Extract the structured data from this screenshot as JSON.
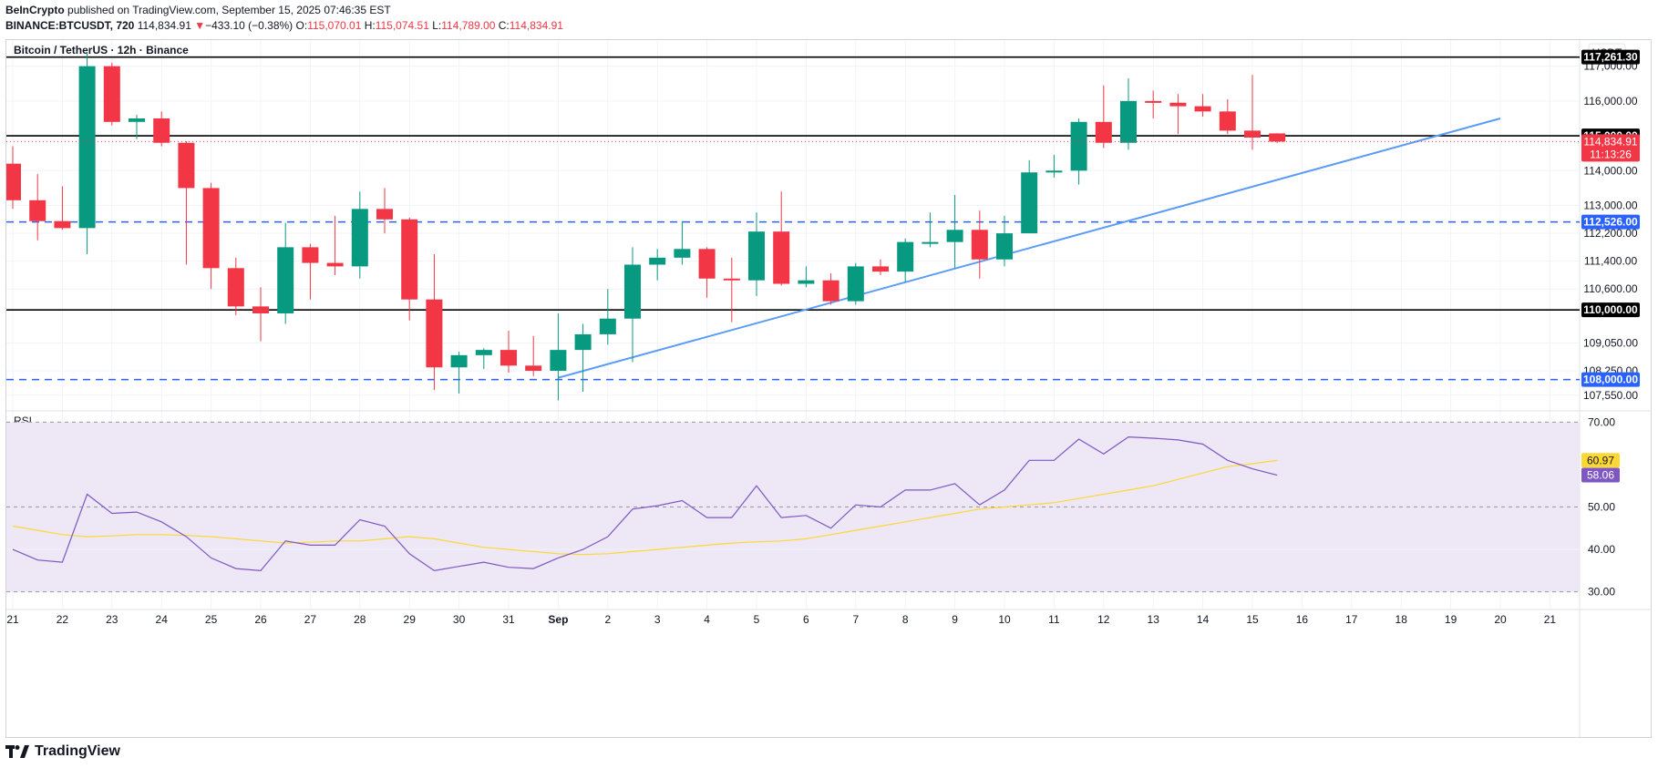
{
  "header": {
    "publisher": "BeInCrypto",
    "published_text": "published on TradingView.com, September 15, 2025 07:46:35 EST",
    "symbol": "BINANCE:BTCUSDT, 720",
    "last_price": "114,834.91",
    "change_arrow": "▼",
    "change": "−433.10 (−0.38%)",
    "o_label": "O:",
    "o_value": "115,070.01",
    "h_label": "H:",
    "h_value": "115,074.51",
    "l_label": "L:",
    "l_value": "114,789.00",
    "c_label": "C:",
    "c_value": "114,834.91"
  },
  "colors": {
    "up": "#089981",
    "down": "#f23645",
    "trendline": "#5b9cf6",
    "dashed": "#2962ff",
    "rsi_line": "#7e57c2",
    "rsi_ma": "#fdd835",
    "rsi_band": "#ede7f6"
  },
  "footer": {
    "brand": "TradingView"
  },
  "chart_data": [
    {
      "type": "candlestick",
      "title": "Bitcoin / TetherUS · 12h · Binance",
      "currency_label": "USDT",
      "ylim": [
        107100,
        117750
      ],
      "y_ticks": [
        {
          "value": 117000,
          "label": "117,000.00"
        },
        {
          "value": 116000,
          "label": "116,000.00"
        },
        {
          "value": 114000,
          "label": "114,000.00"
        },
        {
          "value": 113000,
          "label": "113,000.00"
        },
        {
          "value": 112200,
          "label": "112,200.00"
        },
        {
          "value": 111400,
          "label": "111,400.00"
        },
        {
          "value": 110600,
          "label": "110,600.00"
        },
        {
          "value": 109050,
          "label": "109,050.00"
        },
        {
          "value": 108250,
          "label": "108,250.00"
        },
        {
          "value": 107550,
          "label": "107,550.00"
        }
      ],
      "x_ticks": [
        "21",
        "22",
        "23",
        "24",
        "25",
        "26",
        "27",
        "28",
        "29",
        "30",
        "31",
        "Sep",
        "2",
        "3",
        "4",
        "5",
        "6",
        "7",
        "8",
        "9",
        "10",
        "11",
        "12",
        "13",
        "14",
        "15",
        "16",
        "17",
        "18",
        "19",
        "20",
        "21"
      ],
      "first_candle_offset": 0,
      "candles": [
        {
          "o": 114200,
          "h": 114700,
          "l": 112900,
          "c": 113150
        },
        {
          "o": 113150,
          "h": 113900,
          "l": 112000,
          "c": 112550
        },
        {
          "o": 112550,
          "h": 113550,
          "l": 112300,
          "c": 112350
        },
        {
          "o": 112350,
          "h": 117400,
          "l": 111600,
          "c": 117000
        },
        {
          "o": 117000,
          "h": 117100,
          "l": 115300,
          "c": 115400
        },
        {
          "o": 115400,
          "h": 115600,
          "l": 114900,
          "c": 115500
        },
        {
          "o": 115500,
          "h": 115700,
          "l": 114700,
          "c": 114800
        },
        {
          "o": 114800,
          "h": 114850,
          "l": 111300,
          "c": 113500
        },
        {
          "o": 113500,
          "h": 113650,
          "l": 110600,
          "c": 111200
        },
        {
          "o": 111200,
          "h": 111500,
          "l": 109850,
          "c": 110100
        },
        {
          "o": 110100,
          "h": 110650,
          "l": 109100,
          "c": 109900
        },
        {
          "o": 109900,
          "h": 112500,
          "l": 109600,
          "c": 111800
        },
        {
          "o": 111800,
          "h": 111900,
          "l": 110300,
          "c": 111350
        },
        {
          "o": 111350,
          "h": 112700,
          "l": 111000,
          "c": 111250
        },
        {
          "o": 111250,
          "h": 113400,
          "l": 110900,
          "c": 112900
        },
        {
          "o": 112900,
          "h": 113500,
          "l": 112200,
          "c": 112600
        },
        {
          "o": 112600,
          "h": 112650,
          "l": 109700,
          "c": 110300
        },
        {
          "o": 110300,
          "h": 111600,
          "l": 107700,
          "c": 108350
        },
        {
          "o": 108350,
          "h": 108800,
          "l": 107600,
          "c": 108700
        },
        {
          "o": 108700,
          "h": 108900,
          "l": 108300,
          "c": 108850
        },
        {
          "o": 108850,
          "h": 109400,
          "l": 108200,
          "c": 108400
        },
        {
          "o": 108400,
          "h": 109250,
          "l": 108100,
          "c": 108250
        },
        {
          "o": 108250,
          "h": 109900,
          "l": 107400,
          "c": 108850
        },
        {
          "o": 108850,
          "h": 109600,
          "l": 107650,
          "c": 109300
        },
        {
          "o": 109300,
          "h": 110600,
          "l": 109000,
          "c": 109750
        },
        {
          "o": 109750,
          "h": 111800,
          "l": 108500,
          "c": 111300
        },
        {
          "o": 111300,
          "h": 111750,
          "l": 110850,
          "c": 111500
        },
        {
          "o": 111500,
          "h": 112550,
          "l": 111300,
          "c": 111750
        },
        {
          "o": 111750,
          "h": 111800,
          "l": 110350,
          "c": 110900
        },
        {
          "o": 110900,
          "h": 111500,
          "l": 109650,
          "c": 110850
        },
        {
          "o": 110850,
          "h": 112800,
          "l": 110400,
          "c": 112250
        },
        {
          "o": 112250,
          "h": 113400,
          "l": 110700,
          "c": 110750
        },
        {
          "o": 110750,
          "h": 111250,
          "l": 110650,
          "c": 110850
        },
        {
          "o": 110850,
          "h": 111050,
          "l": 110150,
          "c": 110250
        },
        {
          "o": 110250,
          "h": 111350,
          "l": 110150,
          "c": 111250
        },
        {
          "o": 111250,
          "h": 111450,
          "l": 111000,
          "c": 111100
        },
        {
          "o": 111100,
          "h": 112050,
          "l": 110800,
          "c": 111950
        },
        {
          "o": 111950,
          "h": 112800,
          "l": 111800,
          "c": 111950
        },
        {
          "o": 111950,
          "h": 113300,
          "l": 111200,
          "c": 112300
        },
        {
          "o": 112300,
          "h": 112850,
          "l": 110900,
          "c": 111450
        },
        {
          "o": 111450,
          "h": 112700,
          "l": 111250,
          "c": 112200
        },
        {
          "o": 112200,
          "h": 114300,
          "l": 112200,
          "c": 113950
        },
        {
          "o": 113950,
          "h": 114450,
          "l": 113800,
          "c": 114000
        },
        {
          "o": 114000,
          "h": 115500,
          "l": 113600,
          "c": 115400
        },
        {
          "o": 115400,
          "h": 116450,
          "l": 114650,
          "c": 114800
        },
        {
          "o": 114800,
          "h": 116650,
          "l": 114600,
          "c": 116000
        },
        {
          "o": 116000,
          "h": 116300,
          "l": 115500,
          "c": 115950
        },
        {
          "o": 115950,
          "h": 116200,
          "l": 115050,
          "c": 115850
        },
        {
          "o": 115850,
          "h": 116200,
          "l": 115550,
          "c": 115700
        },
        {
          "o": 115700,
          "h": 116050,
          "l": 115050,
          "c": 115150
        },
        {
          "o": 115150,
          "h": 116750,
          "l": 114600,
          "c": 114950
        },
        {
          "o": 115070.01,
          "h": 115074.51,
          "l": 114789.0,
          "c": 114834.91
        }
      ],
      "horizontal_lines": [
        {
          "value": 117261.3,
          "label": "117,261.30",
          "style": "solid"
        },
        {
          "value": 115000.0,
          "label": "115,000.00",
          "style": "solid"
        },
        {
          "value": 110000.0,
          "label": "110,000.00",
          "style": "solid"
        },
        {
          "value": 112526.0,
          "label": "112,526.00",
          "style": "dashed"
        },
        {
          "value": 108000.0,
          "label": "108,000.00",
          "style": "dashed"
        }
      ],
      "trendline": {
        "from": {
          "candle": 22,
          "value": 108050
        },
        "to": {
          "candle": 60,
          "value": 115500
        }
      },
      "last_price_label": "114,834.91",
      "countdown_label": "11:13:26"
    },
    {
      "type": "line",
      "title": "RSI",
      "ylim": [
        28,
        72
      ],
      "y_ticks": [
        {
          "value": 70,
          "label": "70.00"
        },
        {
          "value": 50,
          "label": "50.00"
        },
        {
          "value": 40,
          "label": "40.00"
        },
        {
          "value": 30,
          "label": "30.00"
        }
      ],
      "band": [
        30,
        70
      ],
      "series": [
        {
          "values": [
            40,
            37.5,
            37,
            53,
            48.5,
            48.8,
            46.5,
            43,
            38,
            35.5,
            35,
            42,
            41,
            41,
            47,
            45.5,
            39,
            35,
            36,
            37,
            35.8,
            35.5,
            38,
            40,
            43,
            49.5,
            50.3,
            51.5,
            47.5,
            47.5,
            55,
            47.5,
            48,
            45,
            50.5,
            50,
            54,
            54,
            55.5,
            50.5,
            54,
            61,
            61,
            66,
            62.5,
            66.5,
            66.2,
            65.8,
            64.8,
            61,
            59,
            57.5
          ]
        },
        {
          "values": [
            45.5,
            44.5,
            43.5,
            43,
            43.2,
            43.5,
            43.5,
            43.3,
            43,
            42.5,
            42,
            41.5,
            41.7,
            42,
            42,
            42.5,
            43,
            42.5,
            41.5,
            40.5,
            40,
            39.5,
            39,
            38.8,
            39,
            39.5,
            40,
            40.5,
            41,
            41.5,
            41.8,
            42,
            42.5,
            43.5,
            44.5,
            45.5,
            46.5,
            47.5,
            48.5,
            49.5,
            50,
            50.5,
            51,
            52,
            53,
            54,
            55,
            56.5,
            58,
            59.5,
            60.2,
            61
          ]
        }
      ],
      "value_labels": [
        "60.97",
        "58.06"
      ]
    }
  ]
}
